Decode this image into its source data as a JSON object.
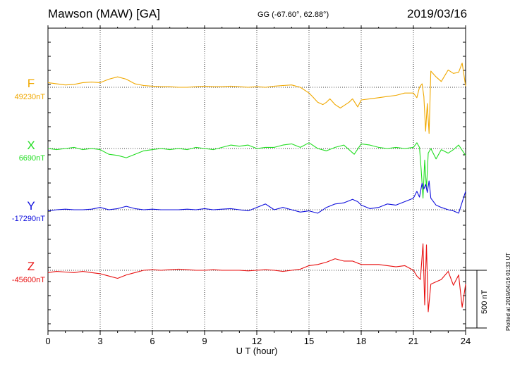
{
  "header": {
    "title": "Mawson (MAW)  [GA]",
    "coordinates": "GG (-67.60°,  62.88°)",
    "date": "2019/03/16"
  },
  "footer": {
    "plotted": "Plotted at 2019/04/16 01:33 UT",
    "scale_bar_label": "500 nT"
  },
  "chart_data": {
    "type": "line",
    "xlabel": "U T (hour)",
    "xlim": [
      0,
      24
    ],
    "x_ticks": [
      0,
      3,
      6,
      9,
      12,
      15,
      18,
      21,
      24
    ],
    "grid": true,
    "scale_bar_nT": 500,
    "series": [
      {
        "name": "F",
        "baseline_label": "49230nT",
        "baseline_nT": 49230,
        "color": "#f0a800",
        "x": [
          0,
          0.5,
          1,
          1.5,
          2,
          2.5,
          3,
          3.5,
          4,
          4.5,
          5,
          5.5,
          6,
          6.5,
          7,
          7.5,
          8,
          8.5,
          9,
          9.5,
          10,
          10.5,
          11,
          11.5,
          12,
          12.5,
          13,
          13.5,
          14,
          14.5,
          15,
          15.2,
          15.5,
          15.8,
          16,
          16.2,
          16.5,
          16.8,
          17,
          17.3,
          17.5,
          17.8,
          18,
          18.5,
          19,
          19.5,
          20,
          20.5,
          21,
          21.2,
          21.35,
          21.5,
          21.6,
          21.7,
          21.8,
          21.9,
          22,
          22.3,
          22.6,
          23,
          23.3,
          23.6,
          23.8,
          24
        ],
        "y": [
          49270,
          49260,
          49250,
          49255,
          49270,
          49275,
          49270,
          49300,
          49320,
          49300,
          49260,
          49245,
          49240,
          49235,
          49235,
          49230,
          49230,
          49235,
          49240,
          49235,
          49235,
          49240,
          49235,
          49230,
          49235,
          49230,
          49240,
          49245,
          49250,
          49230,
          49180,
          49150,
          49100,
          49080,
          49100,
          49130,
          49080,
          49050,
          49070,
          49100,
          49130,
          49060,
          49120,
          49130,
          49140,
          49150,
          49160,
          49180,
          49180,
          49140,
          49230,
          49260,
          49150,
          48850,
          49090,
          48830,
          49370,
          49320,
          49280,
          49380,
          49350,
          49360,
          49440,
          49240
        ]
      },
      {
        "name": "X",
        "baseline_label": "6690nT",
        "baseline_nT": 6690,
        "color": "#22dd22",
        "x": [
          0,
          0.5,
          1,
          1.5,
          2,
          2.5,
          3,
          3.5,
          4,
          4.5,
          5,
          5.5,
          6,
          6.5,
          7,
          7.5,
          8,
          8.5,
          9,
          9.5,
          10,
          10.5,
          11,
          11.5,
          12,
          12.5,
          13,
          13.5,
          14,
          14.5,
          15,
          15.5,
          16,
          16.5,
          17,
          17.3,
          17.6,
          18,
          18.5,
          19,
          19.5,
          20,
          20.5,
          21,
          21.2,
          21.35,
          21.45,
          21.55,
          21.65,
          21.75,
          21.85,
          22,
          22.3,
          22.6,
          23,
          23.3,
          23.6,
          24
        ],
        "y": [
          6690,
          6680,
          6690,
          6700,
          6680,
          6690,
          6680,
          6640,
          6630,
          6610,
          6640,
          6670,
          6680,
          6690,
          6680,
          6690,
          6680,
          6700,
          6690,
          6680,
          6700,
          6720,
          6710,
          6720,
          6690,
          6700,
          6700,
          6720,
          6730,
          6700,
          6740,
          6690,
          6670,
          6700,
          6720,
          6680,
          6640,
          6730,
          6720,
          6700,
          6690,
          6700,
          6690,
          6700,
          6740,
          6700,
          6500,
          6260,
          6590,
          6340,
          6650,
          6690,
          6600,
          6680,
          6650,
          6680,
          6720,
          6630
        ]
      },
      {
        "name": "Y",
        "baseline_label": "-17290nT",
        "baseline_nT": -17290,
        "color": "#1010dd",
        "x": [
          0,
          0.5,
          1,
          1.5,
          2,
          2.5,
          3,
          3.5,
          4,
          4.5,
          5,
          5.5,
          6,
          6.5,
          7,
          7.5,
          8,
          8.5,
          9,
          9.5,
          10,
          10.5,
          11,
          11.5,
          12,
          12.5,
          13,
          13.5,
          14,
          14.5,
          15,
          15.5,
          16,
          16.5,
          17,
          17.5,
          17.8,
          18,
          18.5,
          19,
          19.5,
          20,
          20.5,
          21,
          21.2,
          21.35,
          21.5,
          21.6,
          21.7,
          21.8,
          21.9,
          22,
          22.3,
          22.6,
          23,
          23.3,
          23.6,
          24
        ],
        "y": [
          -17300,
          -17290,
          -17285,
          -17290,
          -17290,
          -17285,
          -17270,
          -17290,
          -17280,
          -17260,
          -17280,
          -17290,
          -17285,
          -17290,
          -17290,
          -17290,
          -17285,
          -17290,
          -17280,
          -17290,
          -17285,
          -17280,
          -17290,
          -17300,
          -17270,
          -17240,
          -17290,
          -17270,
          -17290,
          -17310,
          -17300,
          -17320,
          -17270,
          -17240,
          -17230,
          -17200,
          -17220,
          -17250,
          -17280,
          -17270,
          -17240,
          -17250,
          -17220,
          -17190,
          -17130,
          -17180,
          -17060,
          -17110,
          -17070,
          -17140,
          -17040,
          -17190,
          -17250,
          -17270,
          -17290,
          -17300,
          -17320,
          -17130
        ]
      },
      {
        "name": "Z",
        "baseline_label": "-45600nT",
        "baseline_nT": -45600,
        "color": "#e81010",
        "x": [
          0,
          0.5,
          1,
          1.5,
          2,
          2.5,
          3,
          3.5,
          4,
          4.5,
          5,
          5.5,
          6,
          6.5,
          7,
          7.5,
          8,
          8.5,
          9,
          9.5,
          10,
          10.5,
          11,
          11.5,
          12,
          12.5,
          13,
          13.5,
          14,
          14.5,
          15,
          15.5,
          16,
          16.5,
          17,
          17.5,
          18,
          18.5,
          19,
          19.5,
          20,
          20.5,
          21,
          21.2,
          21.4,
          21.55,
          21.65,
          21.75,
          21.85,
          22,
          22.3,
          22.6,
          23,
          23.3,
          23.6,
          23.8,
          24
        ],
        "y": [
          -45620,
          -45610,
          -45615,
          -45620,
          -45610,
          -45620,
          -45630,
          -45650,
          -45670,
          -45640,
          -45620,
          -45600,
          -45595,
          -45600,
          -45595,
          -45590,
          -45595,
          -45600,
          -45600,
          -45595,
          -45600,
          -45600,
          -45600,
          -45605,
          -45600,
          -45595,
          -45600,
          -45610,
          -45600,
          -45590,
          -45560,
          -45550,
          -45530,
          -45500,
          -45520,
          -45520,
          -45550,
          -45550,
          -45550,
          -45560,
          -45570,
          -45560,
          -45600,
          -45650,
          -45680,
          -45370,
          -45900,
          -45380,
          -45960,
          -45720,
          -45700,
          -45680,
          -45610,
          -45730,
          -45640,
          -45920,
          -45720
        ]
      }
    ]
  }
}
